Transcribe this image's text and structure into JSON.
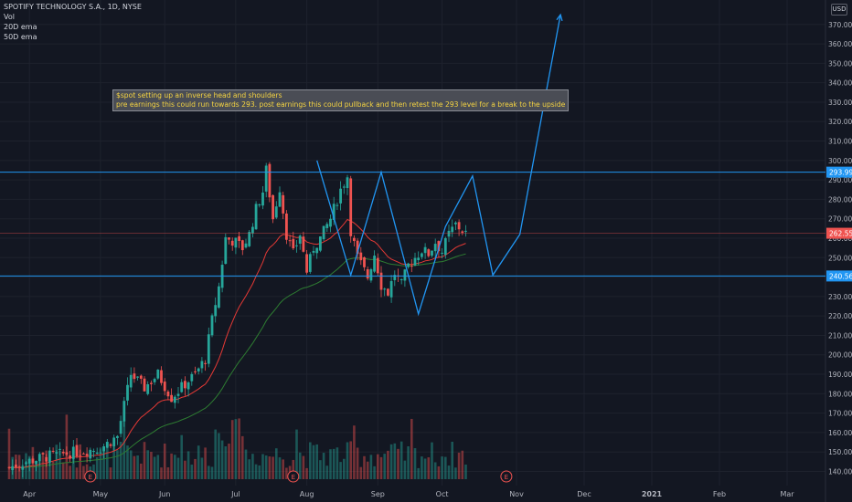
{
  "legend": {
    "symbol": "SPOTIFY TECHNOLOGY S.A., 1D, NYSE",
    "vol": "Vol",
    "ema20": "20D ema",
    "ema50": "50D ema"
  },
  "currency": "USD",
  "annotation": {
    "line1": "$spot setting up an inverse head and shoulders",
    "line2": "pre earnings this could run towards 293. post earnings this could pullback and then retest the 293 level for a break to the upside"
  },
  "colors": {
    "up": "#26a69a",
    "down": "#ef5350",
    "ema20": "#e53935",
    "ema50": "#2e7d32",
    "pattern": "#2196f3",
    "hline": "#2196f3",
    "lastprice": "#ef5350"
  },
  "chart_data": {
    "type": "candlestick",
    "ylim": [
      136,
      376
    ],
    "y_ticks": [
      140,
      150,
      160,
      170,
      180,
      190,
      200,
      210,
      220,
      230,
      240,
      250,
      260,
      270,
      280,
      290,
      300,
      310,
      320,
      330,
      340,
      350,
      360,
      370
    ],
    "x_labels": [
      "Apr",
      "May",
      "Jun",
      "Jul",
      "Aug",
      "Sep",
      "Oct",
      "Nov",
      "Dec",
      "2021",
      "Feb",
      "Mar"
    ],
    "horizontal_lines": [
      {
        "price": 293.99,
        "label": "293.99"
      },
      {
        "price": 240.56,
        "label": "240.56"
      }
    ],
    "last_price": {
      "price": 262.55,
      "label": "262.55"
    },
    "earnings_markers": [
      "E",
      "E",
      "E"
    ],
    "pattern_path": [
      [
        91,
        300
      ],
      [
        101,
        241
      ],
      [
        110,
        294
      ],
      [
        121,
        221
      ],
      [
        129,
        266
      ],
      [
        137,
        292
      ],
      [
        143,
        241
      ],
      [
        151,
        262
      ],
      [
        163,
        375
      ]
    ],
    "ohlc": [],
    "ema20": [],
    "ema50": []
  }
}
